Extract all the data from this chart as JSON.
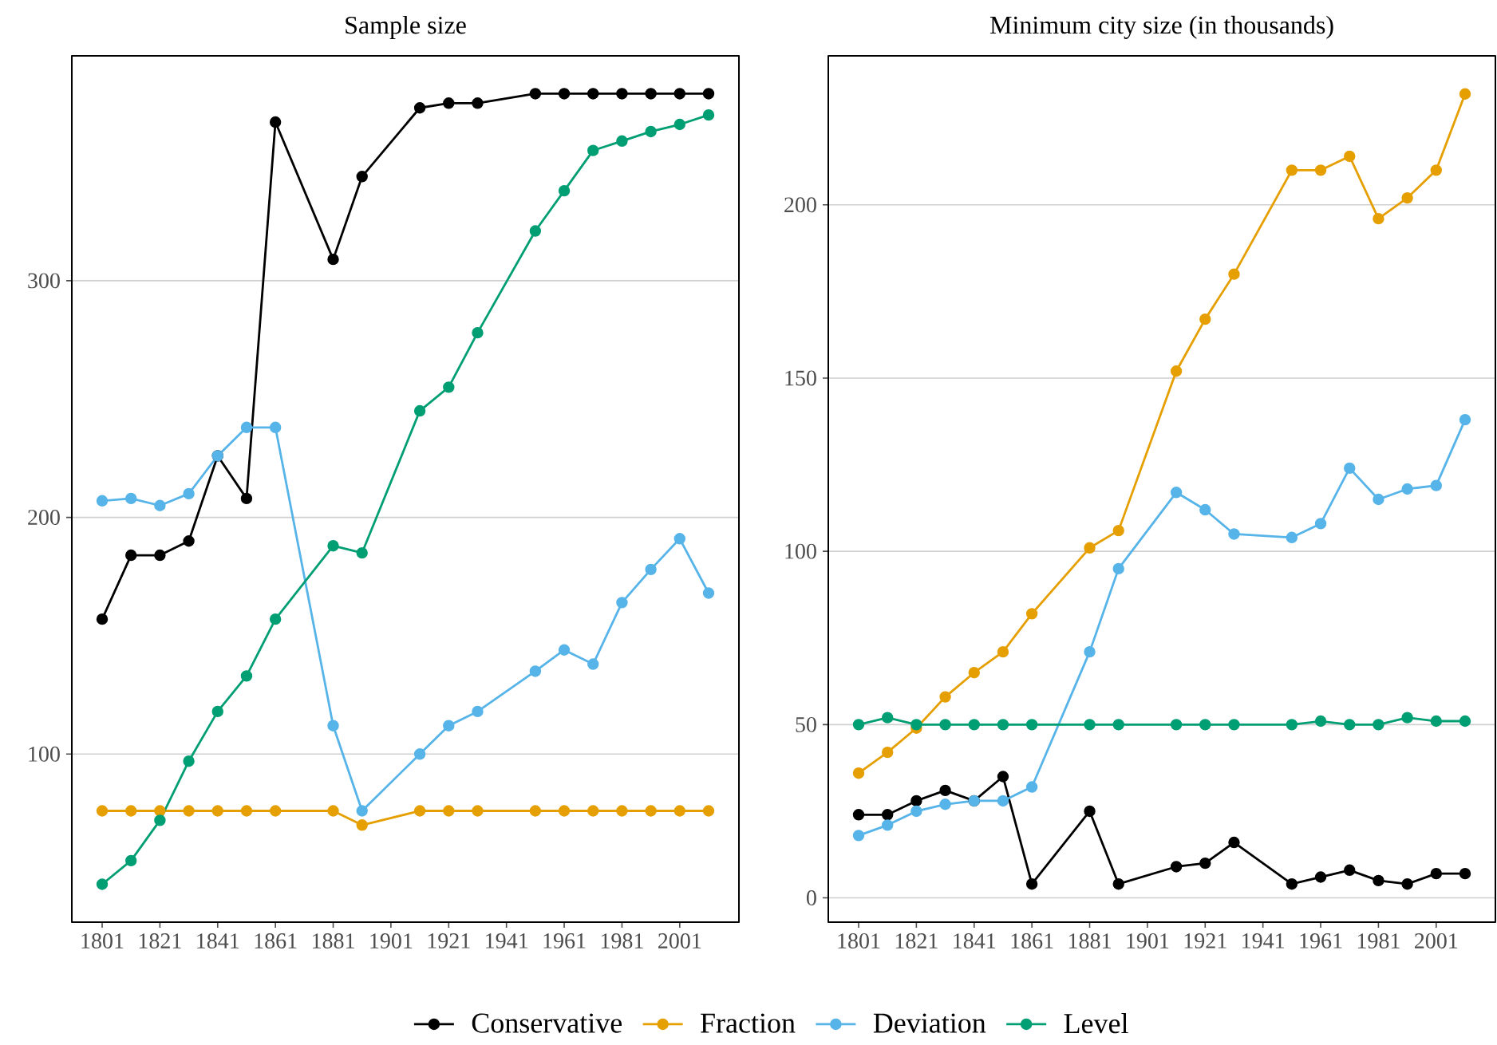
{
  "chart_data": [
    {
      "type": "line",
      "title": "Sample size",
      "x": [
        1801,
        1811,
        1821,
        1831,
        1841,
        1851,
        1861,
        1881,
        1891,
        1911,
        1921,
        1931,
        1951,
        1961,
        1971,
        1981,
        1991,
        2001,
        2011
      ],
      "series": [
        {
          "name": "Conservative",
          "color": "#000000",
          "values": [
            157,
            184,
            184,
            190,
            226,
            208,
            367,
            309,
            344,
            373,
            375,
            375,
            379,
            379,
            379,
            379,
            379,
            379,
            379
          ]
        },
        {
          "name": "Fraction",
          "color": "#e69f00",
          "values": [
            76,
            76,
            76,
            76,
            76,
            76,
            76,
            76,
            70,
            76,
            76,
            76,
            76,
            76,
            76,
            76,
            76,
            76,
            76
          ]
        },
        {
          "name": "Deviation",
          "color": "#56b4e9",
          "values": [
            207,
            208,
            205,
            210,
            226,
            238,
            238,
            112,
            76,
            100,
            112,
            118,
            135,
            144,
            138,
            164,
            178,
            191,
            168
          ]
        },
        {
          "name": "Level",
          "color": "#009e73",
          "values": [
            45,
            55,
            72,
            97,
            118,
            133,
            157,
            188,
            185,
            245,
            255,
            278,
            321,
            338,
            355,
            359,
            363,
            366,
            370
          ]
        }
      ],
      "xlim": [
        1790.5,
        2021.5
      ],
      "xticks": [
        1801,
        1821,
        1841,
        1861,
        1881,
        1901,
        1921,
        1941,
        1961,
        1981,
        2001
      ],
      "ylim": [
        29,
        395
      ],
      "yticks": [
        100,
        200,
        300
      ],
      "grid": "y",
      "legend": "bottom",
      "marker": "circle",
      "line_style": "solid"
    },
    {
      "type": "line",
      "title": "Minimum city size (in thousands)",
      "x": [
        1801,
        1811,
        1821,
        1831,
        1841,
        1851,
        1861,
        1881,
        1891,
        1911,
        1921,
        1931,
        1951,
        1961,
        1971,
        1981,
        1991,
        2001,
        2011
      ],
      "series": [
        {
          "color": "#000000",
          "values": [
            24,
            24,
            28,
            31,
            28,
            35,
            4,
            25,
            4,
            9,
            10,
            16,
            4,
            6,
            8,
            5,
            4,
            7,
            7
          ]
        },
        {
          "color": "#e69f00",
          "values": [
            36,
            42,
            49,
            58,
            65,
            71,
            82,
            101,
            106,
            152,
            167,
            180,
            210,
            210,
            214,
            196,
            202,
            210,
            232
          ]
        },
        {
          "color": "#56b4e9",
          "values": [
            18,
            21,
            25,
            27,
            28,
            28,
            32,
            71,
            95,
            117,
            112,
            105,
            104,
            108,
            124,
            115,
            118,
            119,
            138
          ]
        },
        {
          "color": "#009e73",
          "values": [
            50,
            52,
            50,
            50,
            50,
            50,
            50,
            50,
            50,
            50,
            50,
            50,
            50,
            51,
            50,
            50,
            52,
            51,
            51
          ]
        }
      ],
      "xlim": [
        1790.5,
        2021.5
      ],
      "xticks": [
        1801,
        1821,
        1841,
        1861,
        1881,
        1901,
        1921,
        1941,
        1961,
        1981,
        2001
      ],
      "ylim": [
        -7,
        243
      ],
      "yticks": [
        0,
        50,
        100,
        150,
        200
      ],
      "grid": "y",
      "marker": "circle",
      "line_style": "solid"
    }
  ]
}
